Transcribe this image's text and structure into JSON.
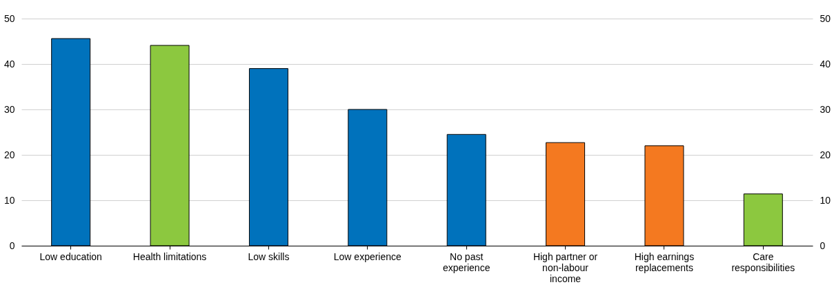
{
  "chart_data": {
    "type": "bar",
    "categories": [
      "Low education",
      "Health limitations",
      "Low skills",
      "Low experience",
      "No past\nexperience",
      "High partner or\nnon-labour\nincome",
      "High earnings\nreplacements",
      "Care\nresponsibilities"
    ],
    "values": [
      45.6,
      44.1,
      39.0,
      30.0,
      24.5,
      22.7,
      22.0,
      11.4
    ],
    "colors": [
      "#0072bc",
      "#8cc83f",
      "#0072bc",
      "#0072bc",
      "#0072bc",
      "#f47920",
      "#f47920",
      "#8cc83f"
    ],
    "ylim": [
      0,
      50
    ],
    "yticks": [
      0,
      10,
      20,
      30,
      40,
      50
    ],
    "y2lim": [
      0,
      50
    ],
    "y2ticks": [
      0,
      10,
      20,
      30,
      40,
      50
    ],
    "grid": "y",
    "legend": false
  }
}
